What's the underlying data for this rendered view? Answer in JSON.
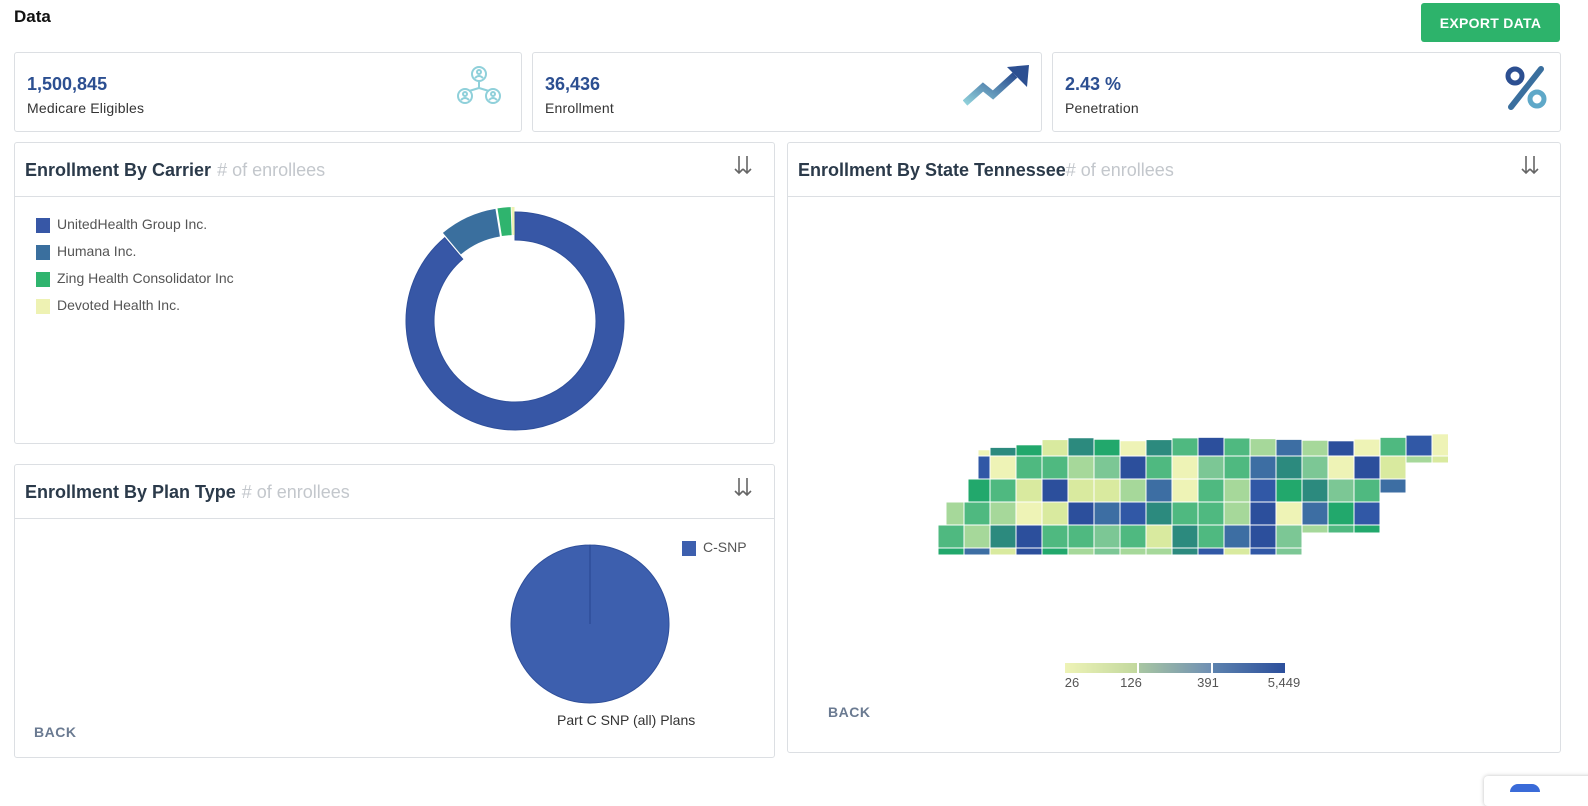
{
  "page": {
    "title": "Data",
    "export_label": "EXPORT DATA"
  },
  "kpis": [
    {
      "value": "1,500,845",
      "label": "Medicare Eligibles",
      "icon": "people-network-icon"
    },
    {
      "value": "36,436",
      "label": "Enrollment",
      "icon": "trend-up-icon"
    },
    {
      "value": "2.43 %",
      "label": "Penetration",
      "icon": "percent-icon"
    }
  ],
  "carrier_panel": {
    "title": "Enrollment By Carrier",
    "subtitle": "# of enrollees",
    "legend": [
      {
        "name": "UnitedHealth Group Inc.",
        "color": "#3757a6"
      },
      {
        "name": "Humana Inc.",
        "color": "#3a6f9e"
      },
      {
        "name": "Zing Health Consolidator Inc",
        "color": "#2fb46e"
      },
      {
        "name": "Devoted Health Inc.",
        "color": "#eef2b3"
      }
    ]
  },
  "plan_panel": {
    "title": "Enrollment By Plan Type",
    "subtitle": "# of enrollees",
    "legend": [
      {
        "name": "C-SNP",
        "color": "#3d5fae"
      }
    ],
    "pie_label": "Part C SNP (all) Plans",
    "back_label": "BACK"
  },
  "state_panel": {
    "title": "Enrollment By State Tennessee",
    "subtitle": "# of enrollees",
    "scale_ticks": [
      "26",
      "126",
      "391",
      "5,449"
    ],
    "scale_colors": [
      "#e4eeb1",
      "#8fb3a3",
      "#5c82ae",
      "#2c4f9c"
    ],
    "back_label": "BACK"
  },
  "chart_data": [
    {
      "type": "pie",
      "title": "Enrollment By Carrier",
      "labels": [
        "UnitedHealth Group Inc.",
        "Humana Inc.",
        "Zing Health Consolidator Inc",
        "Devoted Health Inc."
      ],
      "values": [
        88.9,
        8.6,
        2.0,
        0.5
      ],
      "colors": [
        "#3757a6",
        "#3a6f9e",
        "#2fb46e",
        "#eef2b3"
      ],
      "donut": true
    },
    {
      "type": "pie",
      "title": "Enrollment By Plan Type",
      "labels": [
        "C-SNP"
      ],
      "values": [
        100
      ],
      "colors": [
        "#3d5fae"
      ]
    }
  ]
}
